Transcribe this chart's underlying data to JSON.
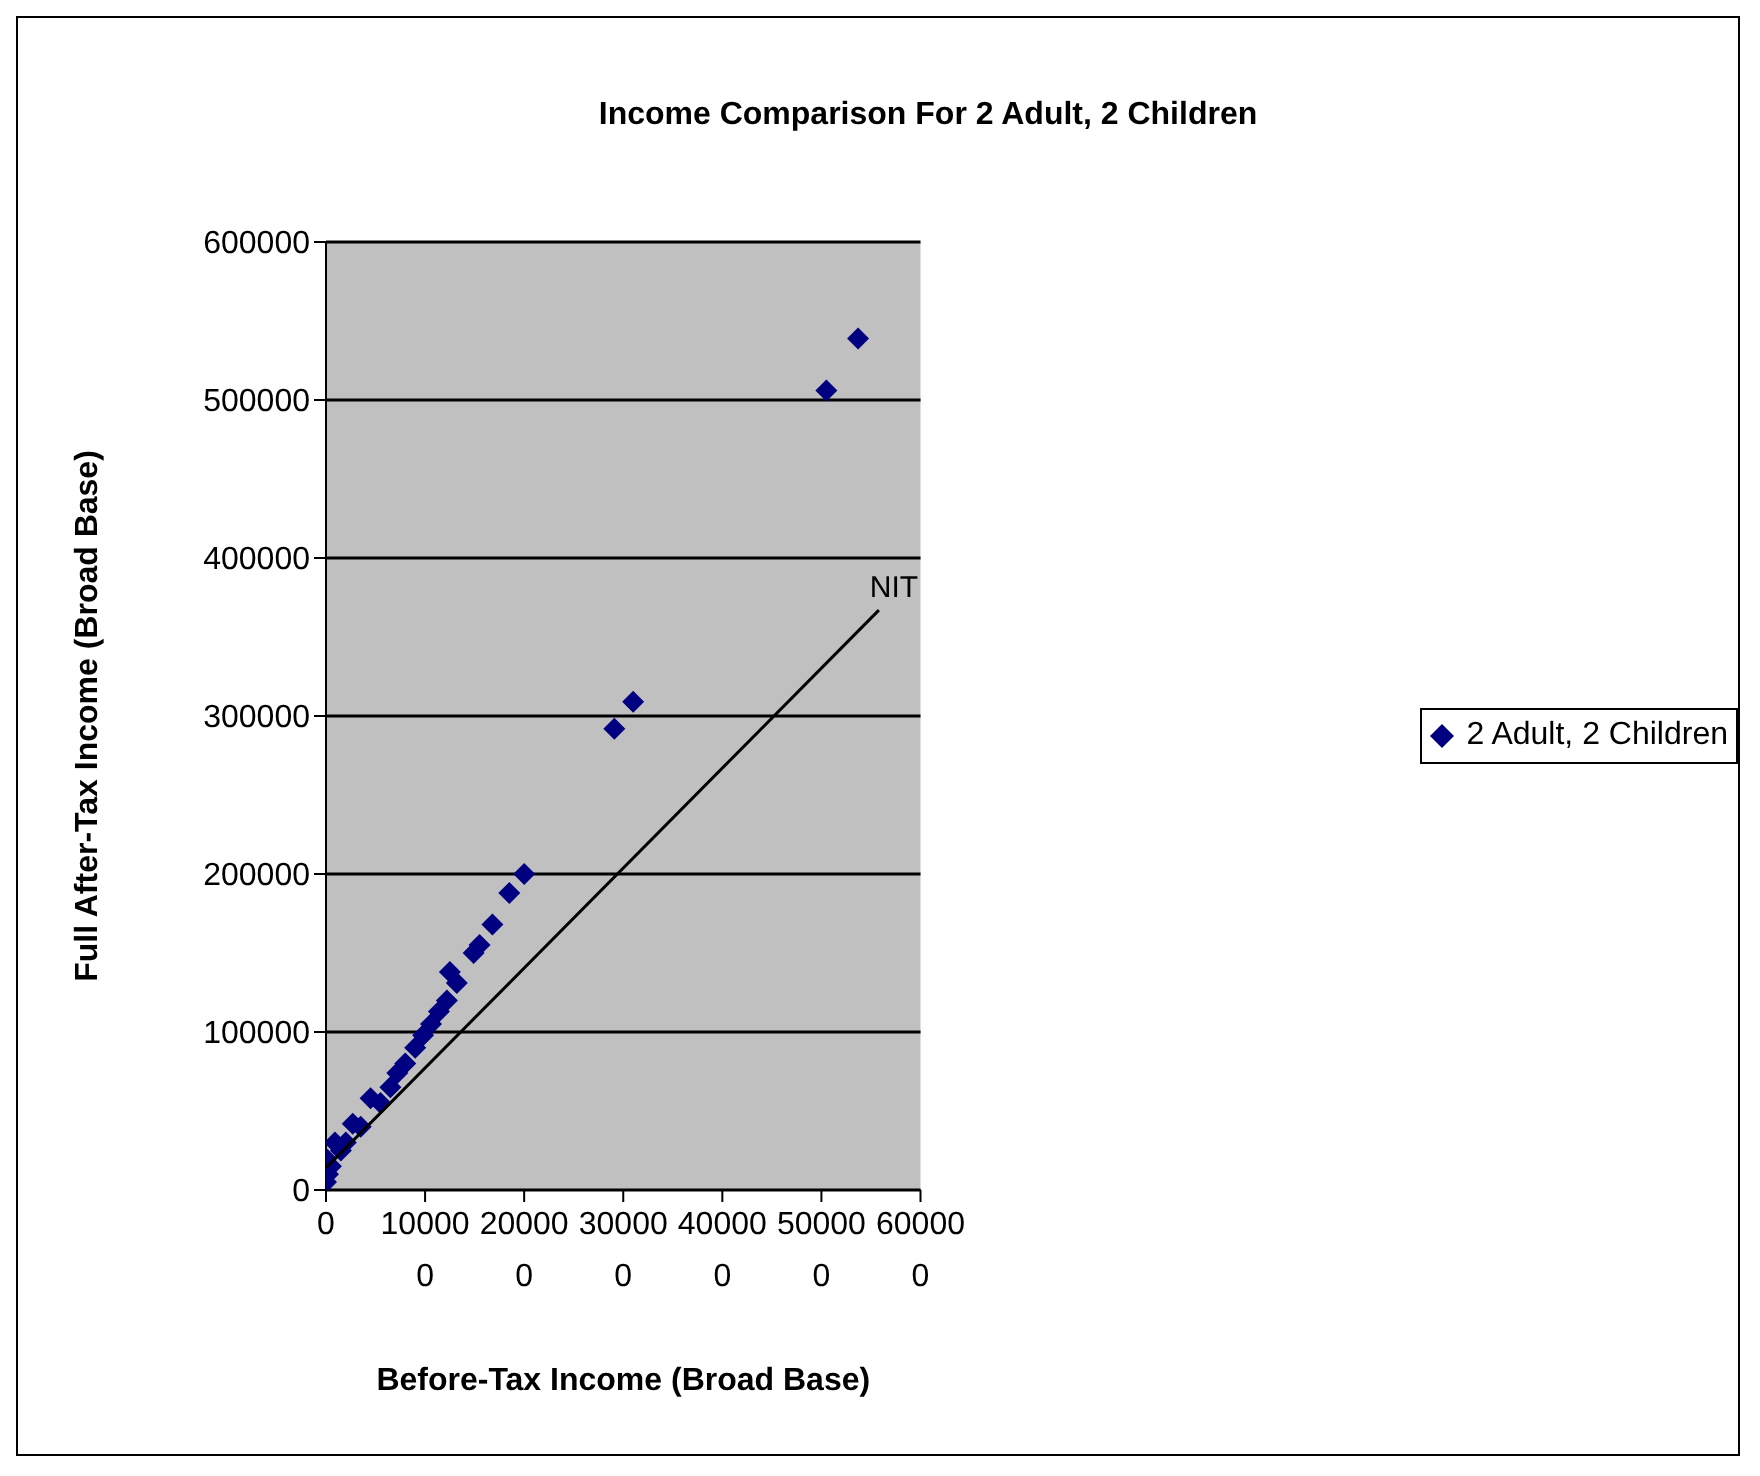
{
  "chart_data": {
    "type": "scatter",
    "title": "Income Comparison For 2 Adult, 2 Children",
    "xlabel": "Before-Tax Income (Broad Base)",
    "ylabel": "Full After-Tax Income (Broad Base)",
    "xlim": [
      0,
      600000
    ],
    "xticks": [
      0,
      100000,
      200000,
      300000,
      400000,
      500000,
      600000
    ],
    "ylim": [
      0,
      600000
    ],
    "yticks": [
      0,
      100000,
      200000,
      300000,
      400000,
      500000,
      600000
    ],
    "grid": "y",
    "legend": "right",
    "marker": "diamond",
    "series": [
      {
        "name": "2 Adult, 2 Children",
        "color": "#000080",
        "x": [
          0,
          0,
          2000,
          5000,
          9000,
          15000,
          20000,
          27000,
          35000,
          45000,
          55000,
          65000,
          72000,
          80000,
          90000,
          98000,
          106000,
          114000,
          122000,
          125000,
          132000,
          149000,
          155000,
          168000,
          185000,
          200000,
          291000,
          310000,
          505000,
          537000
        ],
        "values": [
          5000,
          20000,
          10000,
          15000,
          30000,
          25000,
          30000,
          42000,
          40000,
          58000,
          55000,
          65000,
          74000,
          80000,
          90000,
          98000,
          105000,
          113000,
          120000,
          138000,
          131000,
          150000,
          155000,
          168000,
          188000,
          200000,
          292000,
          309000,
          506000,
          539000
        ]
      },
      {
        "name": "NIT",
        "type": "line",
        "color": "#000000",
        "marker": "none",
        "x": [
          0,
          558000
        ],
        "values": [
          14000,
          367000
        ]
      }
    ]
  }
}
